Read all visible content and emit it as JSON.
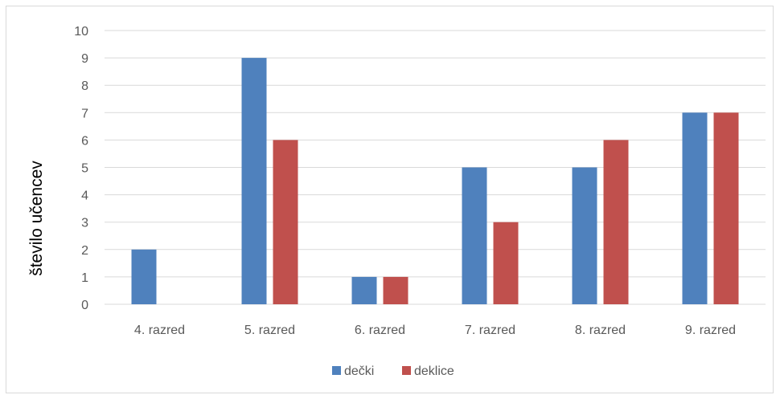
{
  "chart_data": {
    "type": "bar",
    "title": "",
    "xlabel": "",
    "ylabel": "število učencev",
    "categories": [
      "4. razred",
      "5. razred",
      "6. razred",
      "7. razred",
      "8. razred",
      "9. razred"
    ],
    "series": [
      {
        "name": "dečki",
        "color": "#4f81bd",
        "values": [
          2,
          9,
          1,
          5,
          5,
          7
        ]
      },
      {
        "name": "deklice",
        "color": "#c0504d",
        "values": [
          0,
          6,
          1,
          3,
          6,
          7
        ]
      }
    ],
    "ylim": [
      0,
      10
    ],
    "yticks": [
      0,
      1,
      2,
      3,
      4,
      5,
      6,
      7,
      8,
      9,
      10
    ],
    "grid": true,
    "legend_position": "bottom"
  }
}
